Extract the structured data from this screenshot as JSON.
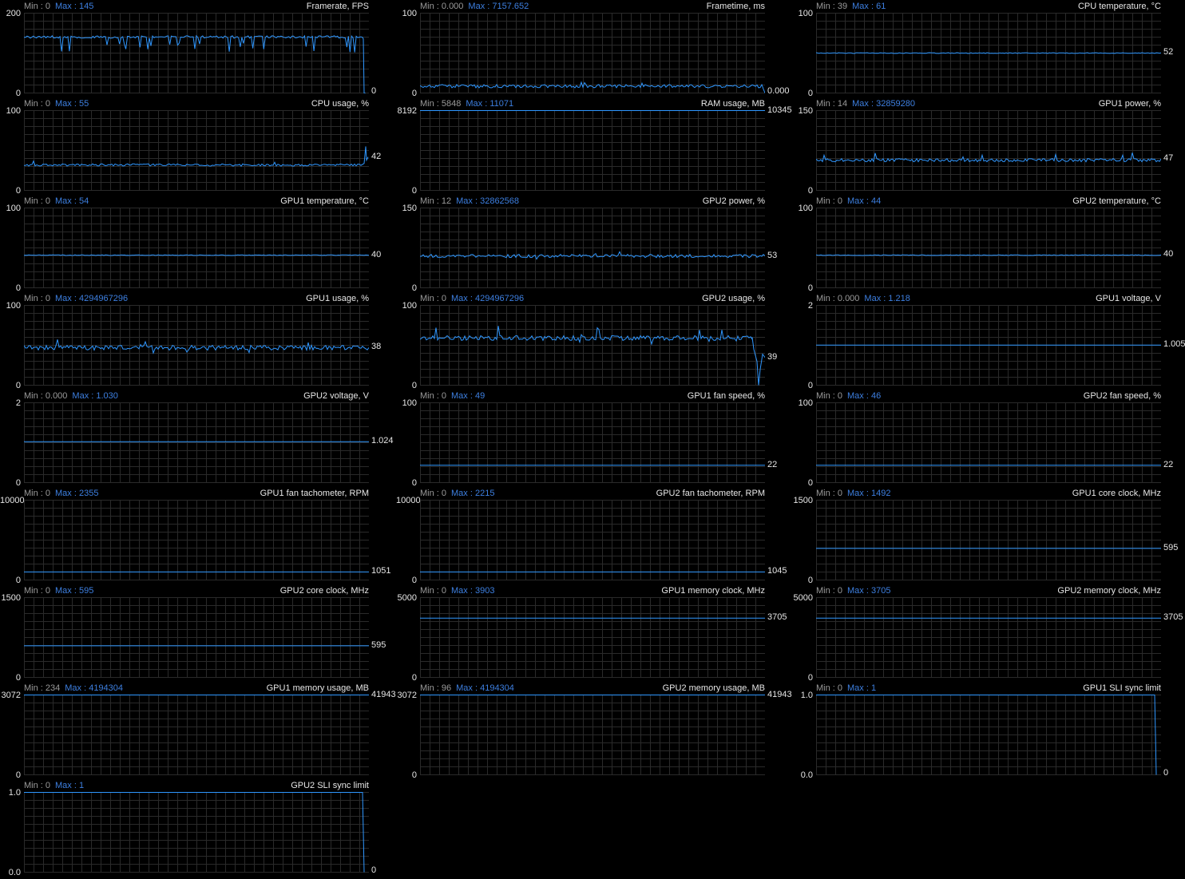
{
  "colors": {
    "background": "#000000",
    "grid": "#2a2a2a",
    "line": "#2f97ff",
    "min_text": "#9a9a9a",
    "max_text": "#3d7fe0",
    "text": "#e6e6e6"
  },
  "chart_data": [
    {
      "type": "line",
      "title": "Framerate, FPS",
      "min": "Min : 0",
      "max": "Max : 145",
      "ytop": "200",
      "ybot": "0",
      "current": "0",
      "ylim": [
        0,
        200
      ],
      "pattern": "fps",
      "level": 140
    },
    {
      "type": "line",
      "title": "Frametime, ms",
      "min": "Min : 0.000",
      "max": "Max : 7157.652",
      "ytop": "100",
      "ybot": "0",
      "current": "0.000",
      "ylim": [
        0,
        100
      ],
      "pattern": "noisy",
      "level": 9,
      "noise": 2,
      "spikes": 5,
      "end": "drop"
    },
    {
      "type": "line",
      "title": "CPU temperature, °C",
      "min": "Min : 39",
      "max": "Max : 61",
      "ytop": "100",
      "ybot": "0",
      "current": "52",
      "ylim": [
        0,
        100
      ],
      "pattern": "noisy",
      "level": 50,
      "noise": 0.5,
      "spikes": 0
    },
    {
      "type": "line",
      "title": "CPU usage, %",
      "min": "Min : 0",
      "max": "Max : 55",
      "ytop": "100",
      "ybot": "0",
      "current": "42",
      "ylim": [
        0,
        100
      ],
      "pattern": "noisy",
      "level": 32,
      "noise": 1.4,
      "spikes": 6,
      "end": "spike"
    },
    {
      "type": "line",
      "title": "RAM usage, MB",
      "min": "Min : 5848",
      "max": "Max : 11071",
      "ytop": "8192",
      "ybot": "0",
      "current": "10345",
      "ylim": [
        0,
        8192
      ],
      "pattern": "flat",
      "level": 8192
    },
    {
      "type": "line",
      "title": "GPU1 power, %",
      "min": "Min : 14",
      "max": "Max : 32859280",
      "ytop": "150",
      "ybot": "0",
      "current": "47",
      "ylim": [
        0,
        150
      ],
      "pattern": "noisy",
      "level": 57,
      "noise": 2,
      "spikes": 10
    },
    {
      "type": "line",
      "title": "GPU1 temperature, °C",
      "min": "Min : 0",
      "max": "Max : 54",
      "ytop": "100",
      "ybot": "0",
      "current": "40",
      "ylim": [
        0,
        100
      ],
      "pattern": "noisy",
      "level": 41,
      "noise": 0.4,
      "spikes": 0
    },
    {
      "type": "line",
      "title": "GPU2 power, %",
      "min": "Min : 12",
      "max": "Max : 32862568",
      "ytop": "150",
      "ybot": "0",
      "current": "53",
      "ylim": [
        0,
        150
      ],
      "pattern": "noisy",
      "level": 60,
      "noise": 2,
      "spikes": 10
    },
    {
      "type": "line",
      "title": "GPU2 temperature, °C",
      "min": "Min : 0",
      "max": "Max : 44",
      "ytop": "100",
      "ybot": "0",
      "current": "40",
      "ylim": [
        0,
        100
      ],
      "pattern": "noisy",
      "level": 41,
      "noise": 0.4,
      "spikes": 0
    },
    {
      "type": "line",
      "title": "GPU1 usage, %",
      "min": "Min : 0",
      "max": "Max : 4294967296",
      "ytop": "100",
      "ybot": "0",
      "current": "38",
      "ylim": [
        0,
        100
      ],
      "pattern": "noisy",
      "level": 47,
      "noise": 3,
      "spikes": 18
    },
    {
      "type": "line",
      "title": "GPU2 usage, %",
      "min": "Min : 0",
      "max": "Max : 4294967296",
      "ytop": "100",
      "ybot": "0",
      "current": "39",
      "ylim": [
        0,
        100
      ],
      "pattern": "noisy",
      "level": 59,
      "noise": 3,
      "spikes": 18,
      "end": "usage2"
    },
    {
      "type": "line",
      "title": "GPU1 voltage, V",
      "min": "Min : 0.000",
      "max": "Max : 1.218",
      "ytop": "2",
      "ybot": "0",
      "current": "1.005",
      "ylim": [
        0,
        2
      ],
      "pattern": "flat",
      "level": 1.005
    },
    {
      "type": "line",
      "title": "GPU2 voltage, V",
      "min": "Min : 0.000",
      "max": "Max : 1.030",
      "ytop": "2",
      "ybot": "0",
      "current": "1.024",
      "ylim": [
        0,
        2
      ],
      "pattern": "flat",
      "level": 1.024
    },
    {
      "type": "line",
      "title": "GPU1 fan speed, %",
      "min": "Min : 0",
      "max": "Max : 49",
      "ytop": "100",
      "ybot": "0",
      "current": "22",
      "ylim": [
        0,
        100
      ],
      "pattern": "flat",
      "level": 22
    },
    {
      "type": "line",
      "title": "GPU2 fan speed, %",
      "min": "Min : 0",
      "max": "Max : 46",
      "ytop": "100",
      "ybot": "0",
      "current": "22",
      "ylim": [
        0,
        100
      ],
      "pattern": "flat",
      "level": 22
    },
    {
      "type": "line",
      "title": "GPU1 fan tachometer, RPM",
      "min": "Min : 0",
      "max": "Max : 2355",
      "ytop": "10000",
      "ybot": "0",
      "current": "1051",
      "ylim": [
        0,
        10000
      ],
      "pattern": "flat",
      "level": 1051
    },
    {
      "type": "line",
      "title": "GPU2 fan tachometer, RPM",
      "min": "Min : 0",
      "max": "Max : 2215",
      "ytop": "10000",
      "ybot": "0",
      "current": "1045",
      "ylim": [
        0,
        10000
      ],
      "pattern": "flat",
      "level": 1045
    },
    {
      "type": "line",
      "title": "GPU1 core clock, MHz",
      "min": "Min : 0",
      "max": "Max : 1492",
      "ytop": "1500",
      "ybot": "0",
      "current": "595",
      "ylim": [
        0,
        1500
      ],
      "pattern": "flat",
      "level": 595
    },
    {
      "type": "line",
      "title": "GPU2 core clock, MHz",
      "min": "Min : 0",
      "max": "Max : 595",
      "ytop": "1500",
      "ybot": "0",
      "current": "595",
      "ylim": [
        0,
        1500
      ],
      "pattern": "flat",
      "level": 595
    },
    {
      "type": "line",
      "title": "GPU1 memory clock, MHz",
      "min": "Min : 0",
      "max": "Max : 3903",
      "ytop": "5000",
      "ybot": "0",
      "current": "3705",
      "ylim": [
        0,
        5000
      ],
      "pattern": "flat",
      "level": 3705
    },
    {
      "type": "line",
      "title": "GPU2 memory clock, MHz",
      "min": "Min : 0",
      "max": "Max : 3705",
      "ytop": "5000",
      "ybot": "0",
      "current": "3705",
      "ylim": [
        0,
        5000
      ],
      "pattern": "flat",
      "level": 3705
    },
    {
      "type": "line",
      "title": "GPU1 memory usage, MB",
      "min": "Min : 234",
      "max": "Max : 4194304",
      "ytop": "3072",
      "ybot": "0",
      "current": "41943",
      "ylim": [
        0,
        3072
      ],
      "pattern": "flat",
      "level": 3072
    },
    {
      "type": "line",
      "title": "GPU2 memory usage, MB",
      "min": "Min : 96",
      "max": "Max : 4194304",
      "ytop": "3072",
      "ybot": "0",
      "current": "41943",
      "ylim": [
        0,
        3072
      ],
      "pattern": "flat",
      "level": 3072
    },
    {
      "type": "line",
      "title": "GPU1 SLI sync limit",
      "min": "Min : 0",
      "max": "Max : 1",
      "ytop": "1.0",
      "ybot": "0.0",
      "current": "0",
      "ylim": [
        0,
        1
      ],
      "pattern": "step",
      "level": 1
    },
    {
      "type": "line",
      "title": "GPU2 SLI sync limit",
      "min": "Min : 0",
      "max": "Max : 1",
      "ytop": "1.0",
      "ybot": "0.0",
      "current": "0",
      "ylim": [
        0,
        1
      ],
      "pattern": "step",
      "level": 1
    }
  ]
}
